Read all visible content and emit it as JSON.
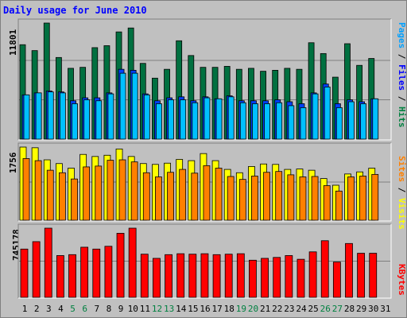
{
  "title": "Daily usage for June 2010",
  "axis": {
    "left_max_hits": "11801",
    "left_max_visits": "1756",
    "left_max_kbytes": "745178"
  },
  "right_labels": {
    "top": [
      {
        "text": "Pages",
        "color": "#00a0ff"
      },
      {
        "text": " / ",
        "color": "#000000"
      },
      {
        "text": "Files",
        "color": "#0000ff"
      },
      {
        "text": " / ",
        "color": "#000000"
      },
      {
        "text": "Hits",
        "color": "#008040"
      }
    ],
    "middle": [
      {
        "text": "Sites",
        "color": "#ff8000"
      },
      {
        "text": " / ",
        "color": "#000000"
      },
      {
        "text": "Visits",
        "color": "#ffff00"
      }
    ],
    "bottom": [
      {
        "text": "KBytes",
        "color": "#ff0000"
      }
    ]
  },
  "colors": {
    "hits": "#007040",
    "files": "#0040ff",
    "pages": "#00c0ff",
    "visits": "#ffff00",
    "sites": "#ff8000",
    "kbytes": "#ff0000",
    "day_weekday": "#000000",
    "day_weekend": "#008040"
  },
  "chart_data": [
    {
      "type": "bar",
      "title": "Daily usage for June 2010",
      "panel": "hits-files-pages",
      "categories": [
        "1",
        "2",
        "3",
        "4",
        "5",
        "6",
        "7",
        "8",
        "9",
        "10",
        "11",
        "12",
        "13",
        "14",
        "15",
        "16",
        "17",
        "18",
        "19",
        "20",
        "21",
        "22",
        "23",
        "24",
        "25",
        "26",
        "27",
        "28",
        "29",
        "30",
        "31"
      ],
      "ylim": [
        0,
        11801
      ],
      "series": [
        {
          "name": "Hits",
          "values": [
            9600,
            9000,
            11801,
            8300,
            7200,
            7300,
            9300,
            9500,
            10900,
            11300,
            7700,
            6200,
            7100,
            10000,
            8500,
            7300,
            7300,
            7400,
            7100,
            7200,
            6900,
            7000,
            7200,
            7100,
            9800,
            8700,
            6300,
            9700,
            7500,
            8200,
            0
          ]
        },
        {
          "name": "Files",
          "values": [
            4500,
            4700,
            4900,
            4800,
            3900,
            4200,
            4200,
            4700,
            7100,
            7000,
            4600,
            3900,
            4200,
            4300,
            3900,
            4300,
            4100,
            4400,
            3900,
            3900,
            3900,
            4000,
            3800,
            3600,
            4700,
            5600,
            3600,
            4000,
            3800,
            4100,
            0
          ]
        },
        {
          "name": "Pages",
          "values": [
            4500,
            4700,
            4800,
            4700,
            3600,
            4000,
            3900,
            4600,
            6700,
            6700,
            4500,
            3600,
            4000,
            4000,
            3700,
            4200,
            4100,
            4300,
            3700,
            3600,
            3600,
            3700,
            3400,
            3200,
            4600,
            5300,
            3200,
            3800,
            3600,
            4100,
            0
          ]
        }
      ]
    },
    {
      "type": "bar",
      "panel": "visits-sites",
      "categories": [
        "1",
        "2",
        "3",
        "4",
        "5",
        "6",
        "7",
        "8",
        "9",
        "10",
        "11",
        "12",
        "13",
        "14",
        "15",
        "16",
        "17",
        "18",
        "19",
        "20",
        "21",
        "22",
        "23",
        "24",
        "25",
        "26",
        "27",
        "28",
        "29",
        "30",
        "31"
      ],
      "ylim": [
        0,
        1756
      ],
      "series": [
        {
          "name": "Visits",
          "values": [
            1756,
            1740,
            1450,
            1360,
            1250,
            1580,
            1530,
            1560,
            1710,
            1530,
            1360,
            1340,
            1370,
            1460,
            1430,
            1600,
            1430,
            1220,
            1140,
            1290,
            1350,
            1340,
            1220,
            1230,
            1200,
            1000,
            840,
            1110,
            1160,
            1250,
            0
          ]
        },
        {
          "name": "Sites",
          "values": [
            1480,
            1430,
            1200,
            1140,
            990,
            1280,
            1300,
            1440,
            1450,
            1400,
            1140,
            1040,
            1150,
            1220,
            1130,
            1310,
            1250,
            1050,
            980,
            1060,
            1150,
            1170,
            1090,
            1040,
            1050,
            830,
            700,
            1040,
            1060,
            1100,
            0
          ]
        }
      ]
    },
    {
      "type": "bar",
      "panel": "kbytes",
      "categories": [
        "1",
        "2",
        "3",
        "4",
        "5",
        "6",
        "7",
        "8",
        "9",
        "10",
        "11",
        "12",
        "13",
        "14",
        "15",
        "16",
        "17",
        "18",
        "19",
        "20",
        "21",
        "22",
        "23",
        "24",
        "25",
        "26",
        "27",
        "28",
        "29",
        "30",
        "31"
      ],
      "ylim": [
        0,
        745178
      ],
      "series": [
        {
          "name": "KBytes",
          "values": [
            520000,
            600000,
            745178,
            450000,
            460000,
            540000,
            520000,
            550000,
            690000,
            745178,
            465000,
            420000,
            460000,
            470000,
            465000,
            470000,
            460000,
            465000,
            470000,
            400000,
            420000,
            430000,
            450000,
            410000,
            490000,
            610000,
            380000,
            580000,
            475000,
            475000,
            0
          ]
        }
      ]
    }
  ],
  "days": {
    "weekend": [
      "5",
      "6",
      "12",
      "13",
      "19",
      "20",
      "26",
      "27"
    ]
  }
}
